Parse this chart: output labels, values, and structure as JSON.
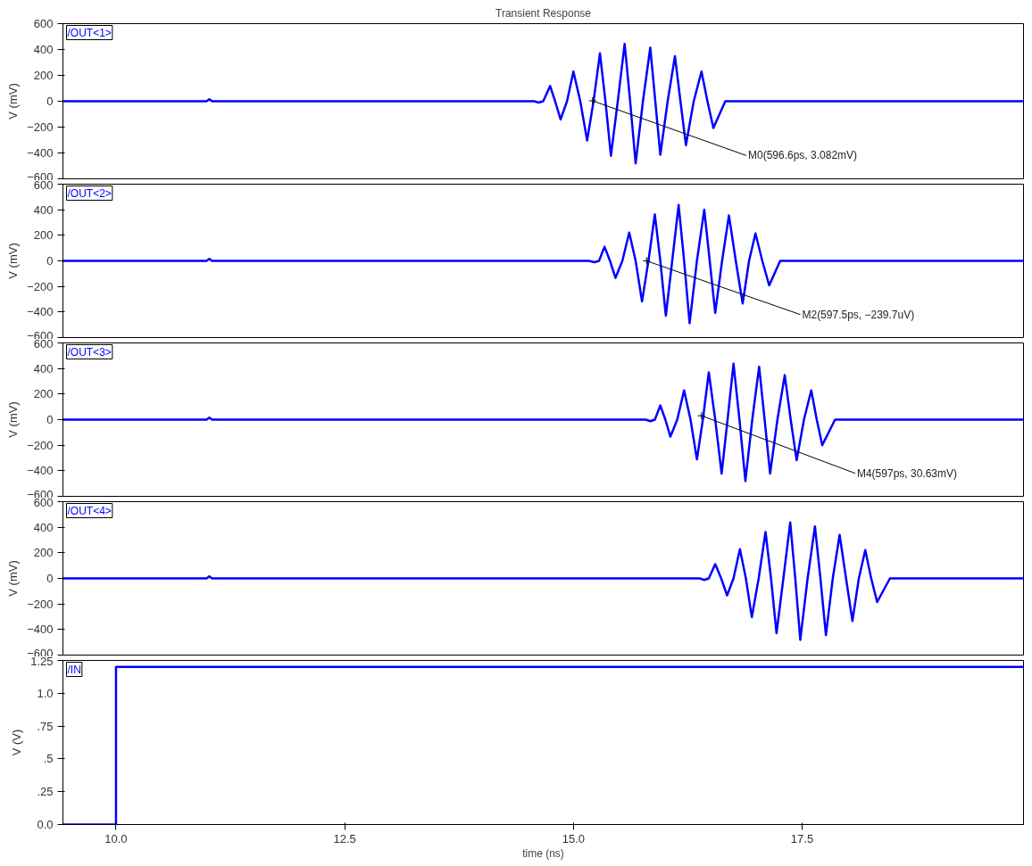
{
  "chart_data": [
    {
      "type": "line",
      "title": "Transient Response",
      "ylabel": "V (mV)",
      "legend": "top left",
      "tick_labels": "y",
      "xlim": [
        9.42,
        19.92
      ],
      "ylim": [
        -600,
        600
      ],
      "yticks": [
        -600,
        -400,
        -200,
        0,
        200,
        400,
        600
      ],
      "series": [
        {
          "name": "/OUT<1>",
          "color": "#0000ff",
          "x": [
            9.42,
            10.99,
            11.02,
            11.05,
            14.57,
            14.62,
            14.67,
            14.745,
            14.8,
            14.86,
            14.93,
            15.0,
            15.075,
            15.15,
            15.22,
            15.29,
            15.35,
            15.41,
            15.485,
            15.56,
            15.62,
            15.68,
            15.76,
            15.84,
            15.895,
            15.95,
            16.03,
            16.11,
            16.17,
            16.23,
            16.315,
            16.4,
            16.465,
            16.53,
            16.66,
            19.92
          ],
          "values": [
            0,
            0,
            15,
            0,
            0,
            -10,
            0,
            118,
            0,
            -141,
            0,
            229,
            0,
            -303,
            0,
            370,
            0,
            -422,
            0,
            444,
            0,
            -481,
            0,
            414,
            0,
            -414,
            0,
            348,
            0,
            -340,
            0,
            229,
            0,
            -207,
            0,
            0
          ]
        }
      ],
      "annotations": [
        {
          "text": "M0(596.6ps, 3.082mV)",
          "x": 15.21,
          "y": 3.082
        }
      ]
    },
    {
      "type": "line",
      "ylabel": "V (mV)",
      "legend": "top left",
      "tick_labels": "y",
      "xlim": [
        9.42,
        19.92
      ],
      "ylim": [
        -600,
        600
      ],
      "yticks": [
        -600,
        -400,
        -200,
        0,
        200,
        400,
        600
      ],
      "series": [
        {
          "name": "/OUT<2>",
          "color": "#0000ff",
          "x": [
            9.42,
            10.99,
            11.02,
            11.05,
            15.17,
            15.23,
            15.28,
            15.34,
            15.4,
            15.46,
            15.535,
            15.61,
            15.68,
            15.75,
            15.82,
            15.89,
            15.95,
            16.01,
            16.08,
            16.15,
            16.21,
            16.27,
            16.35,
            16.43,
            16.49,
            16.55,
            16.625,
            16.7,
            16.775,
            16.85,
            16.92,
            16.99,
            17.065,
            17.14,
            17.26,
            19.92
          ],
          "values": [
            0,
            0,
            15,
            0,
            0,
            -10,
            0,
            111,
            0,
            -133,
            0,
            222,
            0,
            -318,
            0,
            363,
            0,
            -429,
            0,
            437,
            0,
            -488,
            0,
            400,
            0,
            -407,
            0,
            355,
            0,
            -333,
            0,
            215,
            0,
            -192,
            0,
            0
          ]
        }
      ],
      "annotations": [
        {
          "text": "M2(597.5ps, −239.7uV)",
          "x": 15.8,
          "y": -0.2397
        }
      ]
    },
    {
      "type": "line",
      "ylabel": "V (mV)",
      "legend": "top left",
      "tick_labels": "y",
      "xlim": [
        9.42,
        19.92
      ],
      "ylim": [
        -600,
        600
      ],
      "yticks": [
        -600,
        -400,
        -200,
        0,
        200,
        400,
        600
      ],
      "series": [
        {
          "name": "/OUT<3>",
          "color": "#0000ff",
          "x": [
            9.42,
            10.99,
            11.02,
            11.05,
            15.79,
            15.84,
            15.89,
            15.95,
            16.005,
            16.06,
            16.135,
            16.21,
            16.28,
            16.35,
            16.415,
            16.48,
            16.55,
            16.62,
            16.685,
            16.75,
            16.815,
            16.88,
            16.955,
            17.03,
            17.09,
            17.15,
            17.23,
            17.31,
            17.375,
            17.44,
            17.52,
            17.6,
            17.66,
            17.72,
            17.86,
            19.92
          ],
          "values": [
            0,
            0,
            15,
            0,
            0,
            -12,
            0,
            111,
            0,
            -133,
            0,
            229,
            0,
            -311,
            0,
            370,
            0,
            -422,
            0,
            437,
            0,
            -481,
            0,
            414,
            0,
            -422,
            0,
            348,
            0,
            -318,
            0,
            229,
            0,
            -200,
            0,
            0
          ]
        }
      ],
      "annotations": [
        {
          "text": "M4(597ps, 30.63mV)",
          "x": 16.4,
          "y": 30.63
        }
      ]
    },
    {
      "type": "line",
      "ylabel": "V (mV)",
      "legend": "top left",
      "tick_labels": "y",
      "xlim": [
        9.42,
        19.92
      ],
      "ylim": [
        -600,
        600
      ],
      "yticks": [
        -600,
        -400,
        -200,
        0,
        200,
        400,
        600
      ],
      "series": [
        {
          "name": "/OUT<4>",
          "color": "#0000ff",
          "x": [
            9.42,
            10.99,
            11.02,
            11.05,
            16.38,
            16.43,
            16.48,
            16.55,
            16.615,
            16.68,
            16.75,
            16.82,
            16.885,
            16.95,
            17.025,
            17.1,
            17.16,
            17.22,
            17.295,
            17.37,
            17.425,
            17.48,
            17.56,
            17.64,
            17.7,
            17.76,
            17.835,
            17.91,
            17.98,
            18.05,
            18.12,
            18.19,
            18.255,
            18.32,
            18.46,
            19.92
          ],
          "values": [
            0,
            0,
            15,
            0,
            0,
            -12,
            0,
            111,
            0,
            -133,
            0,
            229,
            0,
            -303,
            0,
            363,
            0,
            -429,
            0,
            437,
            0,
            -481,
            0,
            407,
            0,
            -444,
            0,
            340,
            0,
            -333,
            0,
            222,
            0,
            -185,
            0,
            0
          ]
        }
      ]
    },
    {
      "type": "line",
      "ylabel": "V (V)",
      "xlabel": "time (ns)",
      "legend": "top left",
      "xlim": [
        9.42,
        19.92
      ],
      "ylim": [
        0,
        1.25
      ],
      "xticks": [
        {
          "value": 10,
          "label": "10.0"
        },
        12.5,
        {
          "value": 15,
          "label": "15.0"
        },
        17.5
      ],
      "yticks": [
        {
          "value": 0,
          "label": "0.0"
        },
        {
          "value": 0.25,
          "label": ".25"
        },
        {
          "value": 0.5,
          "label": ".5"
        },
        {
          "value": 0.75,
          "label": ".75"
        },
        {
          "value": 1,
          "label": "1.0"
        },
        1.25
      ],
      "series": [
        {
          "name": "/IN",
          "color": "#0000ff",
          "x": [
            9.42,
            10.0,
            10.0,
            19.92
          ],
          "values": [
            0,
            0,
            1.2,
            1.2
          ]
        }
      ]
    }
  ]
}
